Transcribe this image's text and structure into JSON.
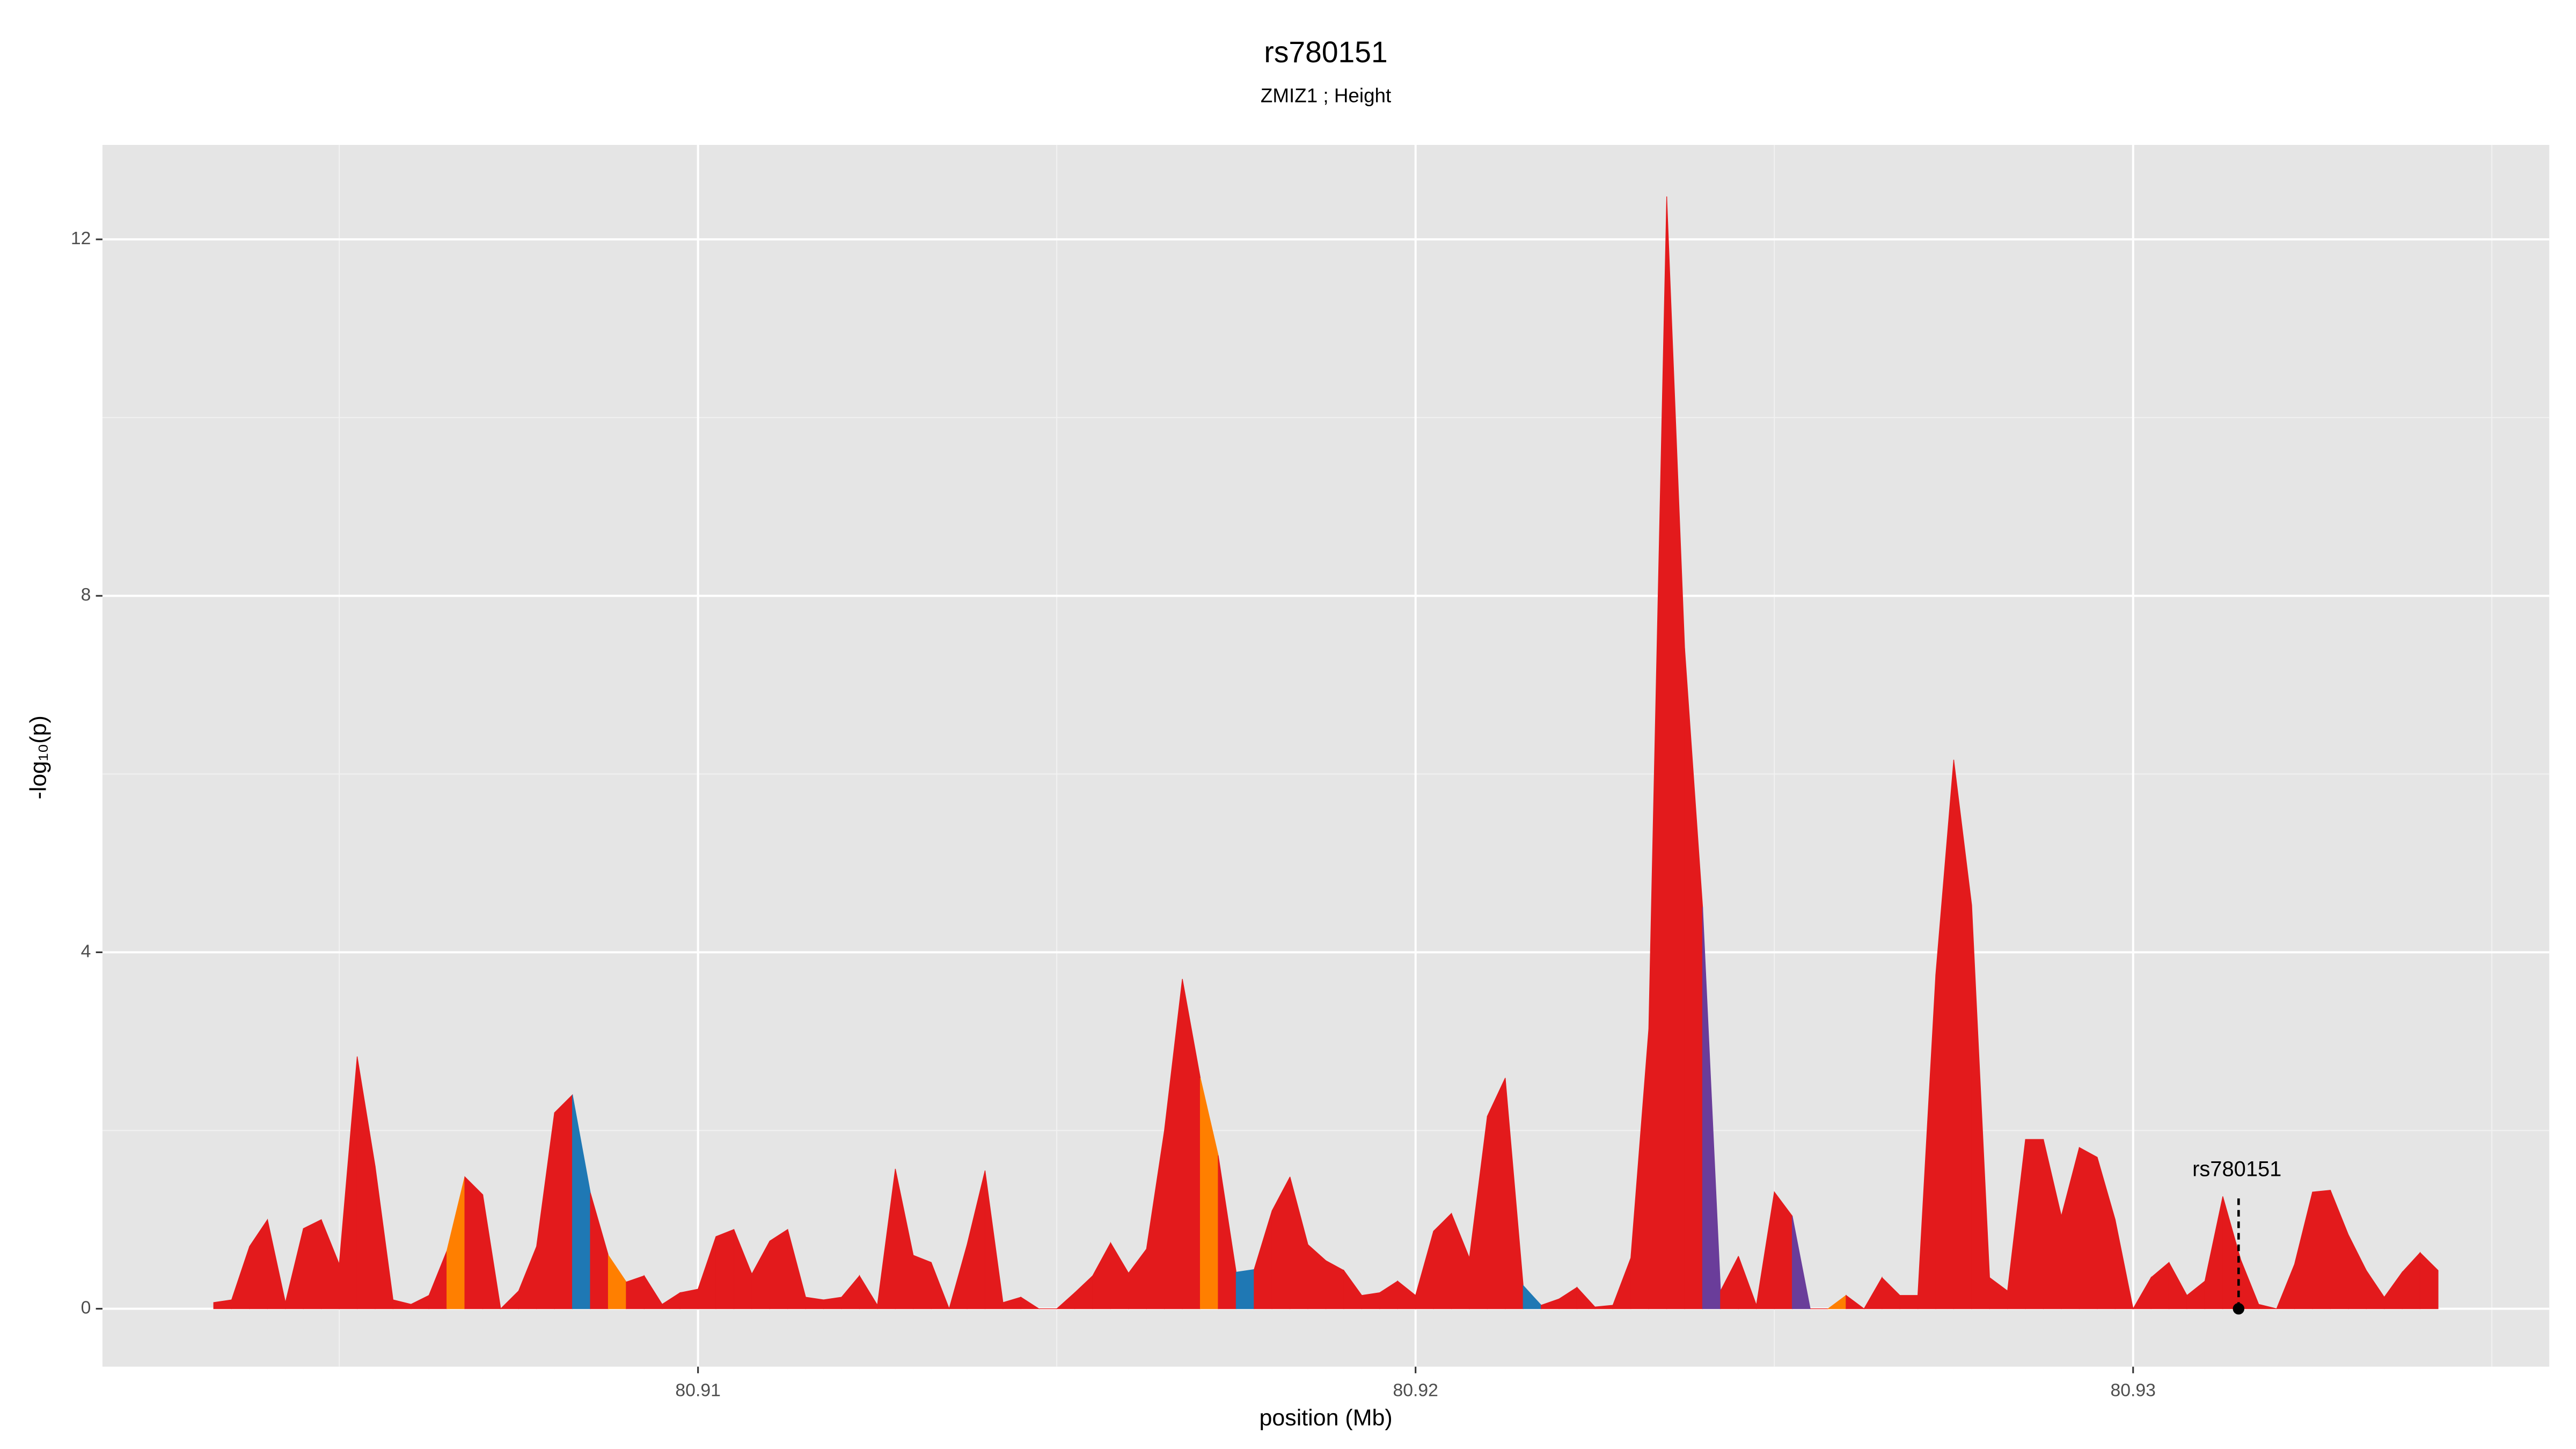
{
  "chart_data": {
    "type": "segmented_area",
    "title": "rs780151",
    "subtitle": "ZMIZ1 ; Height",
    "x_label": "position (Mb)",
    "y_label": "-log₁₀(p)",
    "xlim": [
      80.9017,
      80.9358
    ],
    "ylim": [
      -0.65,
      13.06
    ],
    "xticks": [
      80.91,
      80.92,
      80.93
    ],
    "yticks": [
      0,
      4,
      8,
      12
    ],
    "x_minor_grid": [
      80.905,
      80.915,
      80.925,
      80.935
    ],
    "y_minor_grid": [
      2,
      6,
      10
    ],
    "grid": true,
    "x": [
      80.90325,
      80.9035,
      80.90375,
      80.904,
      80.90425,
      80.9045,
      80.90475,
      80.905,
      80.90525,
      80.9055,
      80.90575,
      80.906,
      80.90625,
      80.9065,
      80.90675,
      80.907,
      80.90725,
      80.9075,
      80.90775,
      80.908,
      80.90825,
      80.9085,
      80.90875,
      80.909,
      80.90925,
      80.9095,
      80.90975,
      80.91,
      80.91025,
      80.9105,
      80.91075,
      80.911,
      80.91125,
      80.9115,
      80.91175,
      80.912,
      80.91225,
      80.9125,
      80.91275,
      80.913,
      80.91325,
      80.9135,
      80.91375,
      80.914,
      80.91425,
      80.9145,
      80.91475,
      80.915,
      80.91525,
      80.9155,
      80.91575,
      80.916,
      80.91625,
      80.9165,
      80.91675,
      80.917,
      80.91725,
      80.9175,
      80.91775,
      80.918,
      80.91825,
      80.9185,
      80.91875,
      80.919,
      80.91925,
      80.9195,
      80.91975,
      80.92,
      80.92025,
      80.9205,
      80.92075,
      80.921,
      80.92125,
      80.9215,
      80.92175,
      80.922,
      80.92225,
      80.9225,
      80.92275,
      80.923,
      80.92325,
      80.9235,
      80.92375,
      80.924,
      80.92425,
      80.9245,
      80.92475,
      80.925,
      80.92525,
      80.9255,
      80.92575,
      80.926,
      80.92625,
      80.9265,
      80.92675,
      80.927,
      80.92725,
      80.9275,
      80.92775,
      80.928,
      80.92825,
      80.9285,
      80.92875,
      80.929,
      80.92925,
      80.9295,
      80.92975,
      80.93,
      80.93025,
      80.9305,
      80.93075,
      80.931,
      80.93125,
      80.9315,
      80.93175,
      80.932,
      80.93225,
      80.9325,
      80.93275,
      80.933,
      80.93325,
      80.9335,
      80.93375,
      80.934,
      80.93425
    ],
    "values": [
      0.07,
      0.1,
      0.7,
      1.0,
      0.07,
      0.9,
      1.0,
      0.5,
      2.83,
      1.6,
      0.1,
      0.05,
      0.15,
      0.65,
      1.48,
      1.28,
      0,
      0.2,
      0.7,
      2.2,
      2.4,
      1.3,
      0.6,
      0.3,
      0.37,
      0.05,
      0.18,
      0.22,
      0.81,
      0.89,
      0.39,
      0.76,
      0.89,
      0.13,
      0.1,
      0.13,
      0.37,
      0.04,
      1.57,
      0.6,
      0.52,
      0,
      0.72,
      1.55,
      0.07,
      0.13,
      0,
      0,
      0.18,
      0.37,
      0.74,
      0.4,
      0.67,
      2.0,
      3.7,
      2.59,
      1.72,
      0.41,
      0.44,
      1.1,
      1.48,
      0.72,
      0.54,
      0.43,
      0.15,
      0.18,
      0.31,
      0.15,
      0.87,
      1.07,
      0.57,
      2.16,
      2.59,
      0.26,
      0.04,
      0.11,
      0.24,
      0.02,
      0.04,
      0.57,
      3.14,
      12.48,
      7.41,
      4.51,
      0.2,
      0.59,
      0.04,
      1.31,
      1.04,
      0,
      0,
      0.15,
      0,
      0.35,
      0.15,
      0.15,
      3.75,
      6.16,
      4.53,
      0.35,
      0.2,
      1.9,
      1.9,
      1.04,
      1.81,
      1.7,
      1.0,
      0,
      0.35,
      0.52,
      0.15,
      0.31,
      1.26,
      0.55,
      0.05,
      0,
      0.5,
      1.31,
      1.33,
      0.83,
      0.43,
      0.13,
      0.41,
      0.63,
      0.43
    ],
    "segment_colors": [
      "#e31a1c",
      "#e31a1c",
      "#e31a1c",
      "#e31a1c",
      "#e31a1c",
      "#e31a1c",
      "#e31a1c",
      "#e31a1c",
      "#e31a1c",
      "#e31a1c",
      "#e31a1c",
      "#e31a1c",
      "#e31a1c",
      "#ff7f00",
      "#e31a1c",
      "#e31a1c",
      "#e31a1c",
      "#e31a1c",
      "#e31a1c",
      "#e31a1c",
      "#1f78b4",
      "#e31a1c",
      "#ff7f00",
      "#e31a1c",
      "#e31a1c",
      "#e31a1c",
      "#e31a1c",
      "#e31a1c",
      "#e31a1c",
      "#e31a1c",
      "#e31a1c",
      "#e31a1c",
      "#e31a1c",
      "#e31a1c",
      "#e31a1c",
      "#e31a1c",
      "#e31a1c",
      "#e31a1c",
      "#e31a1c",
      "#e31a1c",
      "#e31a1c",
      "#e31a1c",
      "#e31a1c",
      "#e31a1c",
      "#e31a1c",
      "#e31a1c",
      "#e31a1c",
      "#e31a1c",
      "#e31a1c",
      "#e31a1c",
      "#e31a1c",
      "#e31a1c",
      "#e31a1c",
      "#e31a1c",
      "#e31a1c",
      "#ff7f00",
      "#e31a1c",
      "#1f78b4",
      "#e31a1c",
      "#e31a1c",
      "#e31a1c",
      "#e31a1c",
      "#e31a1c",
      "#e31a1c",
      "#e31a1c",
      "#e31a1c",
      "#e31a1c",
      "#e31a1c",
      "#e31a1c",
      "#e31a1c",
      "#e31a1c",
      "#e31a1c",
      "#e31a1c",
      "#1f78b4",
      "#e31a1c",
      "#e31a1c",
      "#e31a1c",
      "#e31a1c",
      "#e31a1c",
      "#e31a1c",
      "#e31a1c",
      "#e31a1c",
      "#e31a1c",
      "#6a3d9a",
      "#e31a1c",
      "#e31a1c",
      "#e31a1c",
      "#e31a1c",
      "#6a3d9a",
      "#e31a1c",
      "#ff7f00",
      "#e31a1c",
      "#e31a1c",
      "#e31a1c",
      "#e31a1c",
      "#e31a1c",
      "#e31a1c",
      "#e31a1c",
      "#e31a1c",
      "#e31a1c",
      "#e31a1c",
      "#e31a1c",
      "#e31a1c",
      "#e31a1c",
      "#e31a1c",
      "#e31a1c",
      "#e31a1c",
      "#e31a1c",
      "#e31a1c",
      "#e31a1c",
      "#e31a1c",
      "#e31a1c",
      "#e31a1c",
      "#e31a1c",
      "#e31a1c",
      "#e31a1c",
      "#e31a1c",
      "#e31a1c",
      "#e31a1c",
      "#e31a1c",
      "#e31a1c",
      "#e31a1c",
      "#e31a1c",
      "#e31a1c"
    ],
    "annotation": {
      "text": "rs780151",
      "x": 80.93147,
      "y": 0
    }
  }
}
